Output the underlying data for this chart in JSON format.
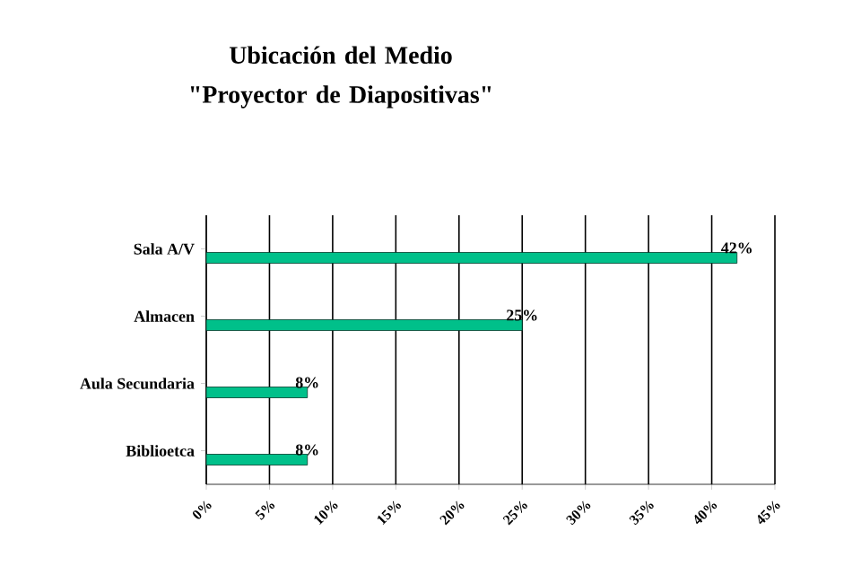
{
  "chart_data": {
    "type": "bar",
    "orientation": "horizontal",
    "title": "Ubicación del Medio \"Proyector de Diapositivas\"",
    "categories": [
      "Sala A/V",
      "Almacen",
      "Aula  Secundaria",
      "Biblioetca"
    ],
    "values": [
      42,
      25,
      8,
      8
    ],
    "value_labels": [
      "42%",
      "25%",
      "8%",
      "8%"
    ],
    "color": "#00c08a",
    "xlim": [
      0,
      45
    ],
    "xticks": [
      {
        "value": 0,
        "label": "0%"
      },
      {
        "value": 5,
        "label": "5%"
      },
      {
        "value": 10,
        "label": "10%"
      },
      {
        "value": 15,
        "label": "15%"
      },
      {
        "value": 20,
        "label": "20%"
      },
      {
        "value": 25,
        "label": "25%"
      },
      {
        "value": 30,
        "label": "30%"
      },
      {
        "value": 35,
        "label": "35%"
      },
      {
        "value": 40,
        "label": "40%"
      },
      {
        "value": 45,
        "label": "45%"
      }
    ],
    "grid": "x"
  }
}
